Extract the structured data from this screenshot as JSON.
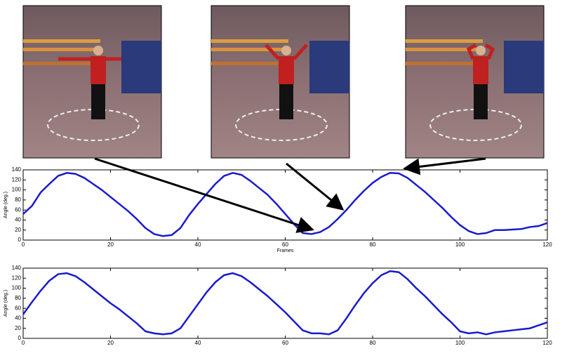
{
  "chart_data": [
    {
      "type": "line",
      "xlabel": "Frames",
      "ylabel": "Angle (deg.)",
      "x": [
        0,
        2,
        4,
        6,
        8,
        10,
        12,
        14,
        16,
        18,
        20,
        22,
        24,
        26,
        28,
        30,
        32,
        34,
        36,
        38,
        40,
        42,
        44,
        46,
        48,
        50,
        52,
        54,
        56,
        58,
        60,
        62,
        64,
        66,
        68,
        70,
        72,
        74,
        76,
        78,
        80,
        82,
        84,
        86,
        88,
        90,
        92,
        94,
        96,
        98,
        100,
        102,
        104,
        106,
        108,
        110,
        112,
        114,
        116,
        118,
        120
      ],
      "series": [
        {
          "color": "#1a1acc",
          "values": [
            52,
            68,
            95,
            112,
            128,
            134,
            132,
            124,
            112,
            100,
            86,
            72,
            58,
            42,
            24,
            12,
            8,
            10,
            24,
            50,
            72,
            92,
            112,
            128,
            134,
            130,
            118,
            104,
            90,
            72,
            52,
            32,
            14,
            12,
            16,
            26,
            42,
            60,
            80,
            98,
            114,
            126,
            134,
            133,
            124,
            110,
            96,
            80,
            64,
            46,
            30,
            18,
            12,
            14,
            20,
            20,
            21,
            22,
            26,
            28,
            34
          ]
        }
      ],
      "xlim": [
        0,
        120
      ],
      "ylim": [
        0,
        140
      ],
      "xticks": [
        0,
        20,
        40,
        60,
        80,
        100,
        120
      ],
      "yticks": [
        0,
        20,
        40,
        60,
        80,
        100,
        120,
        140
      ]
    },
    {
      "type": "line",
      "ylabel": "Angle (deg.)",
      "x": [
        0,
        2,
        4,
        6,
        8,
        10,
        12,
        14,
        16,
        18,
        20,
        22,
        24,
        26,
        28,
        30,
        32,
        34,
        36,
        38,
        40,
        42,
        44,
        46,
        48,
        50,
        52,
        54,
        56,
        58,
        60,
        62,
        64,
        66,
        68,
        70,
        72,
        74,
        76,
        78,
        80,
        82,
        84,
        86,
        88,
        90,
        92,
        94,
        96,
        98,
        100,
        102,
        104,
        106,
        108,
        110,
        112,
        114,
        116,
        118,
        120
      ],
      "series": [
        {
          "color": "#1a1acc",
          "values": [
            48,
            72,
            95,
            115,
            128,
            130,
            124,
            112,
            98,
            84,
            70,
            58,
            44,
            30,
            14,
            10,
            8,
            10,
            20,
            44,
            68,
            92,
            112,
            126,
            130,
            124,
            112,
            98,
            84,
            68,
            52,
            34,
            16,
            10,
            10,
            8,
            16,
            40,
            66,
            90,
            110,
            126,
            134,
            132,
            118,
            100,
            84,
            66,
            48,
            32,
            14,
            10,
            12,
            8,
            12,
            14,
            16,
            18,
            20,
            26,
            32
          ]
        }
      ],
      "xlim": [
        0,
        120
      ],
      "ylim": [
        0,
        140
      ],
      "xticks": [
        0,
        20,
        40,
        60,
        80,
        100,
        120
      ],
      "yticks": [
        0,
        20,
        40,
        60,
        80,
        100,
        120,
        140
      ]
    }
  ]
}
